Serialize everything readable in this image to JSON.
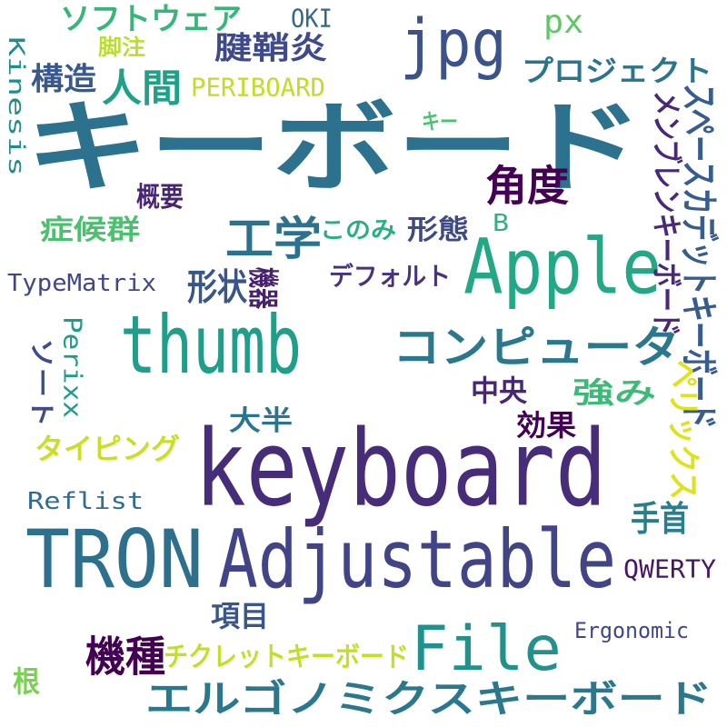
{
  "words": [
    {
      "text": "キーボード",
      "color": "#2c718e"
    },
    {
      "text": "keyboard",
      "color": "#472c7a"
    },
    {
      "text": "Apple",
      "color": "#22a884"
    },
    {
      "text": "thumb",
      "color": "#1f9e89"
    },
    {
      "text": "TRON",
      "color": "#2d708e"
    },
    {
      "text": "Adjustable",
      "color": "#414487"
    },
    {
      "text": "File",
      "color": "#21918c"
    },
    {
      "text": "jpg",
      "color": "#3b528b"
    },
    {
      "text": "エルゴノミクスキーボード",
      "color": "#2a788e"
    },
    {
      "text": "コンピュータ",
      "color": "#2a788e"
    },
    {
      "text": "スペースカデットキーボード",
      "color": "#365d8d"
    },
    {
      "text": "メンブレンキーボード",
      "color": "#482878"
    },
    {
      "text": "ソフトウェア",
      "color": "#35b779"
    },
    {
      "text": "人間",
      "color": "#1fa187"
    },
    {
      "text": "工学",
      "color": "#2c728e"
    },
    {
      "text": "角度",
      "color": "#440154"
    },
    {
      "text": "手首",
      "color": "#277f8e"
    },
    {
      "text": "機種",
      "color": "#440154"
    },
    {
      "text": "プロジェクト",
      "color": "#2b748e"
    },
    {
      "text": "腱鞘炎",
      "color": "#3e4a89"
    },
    {
      "text": "構造",
      "color": "#38598c"
    },
    {
      "text": "PERIBOARD",
      "color": "#bddf26"
    },
    {
      "text": "脚注",
      "color": "#b8de29"
    },
    {
      "text": "OKI",
      "color": "#31688e"
    },
    {
      "text": "px",
      "color": "#5ec962"
    },
    {
      "text": "Kinesis",
      "color": "#228d8d"
    },
    {
      "text": "キー",
      "color": "#4ac16d"
    },
    {
      "text": "概要",
      "color": "#482475"
    },
    {
      "text": "症候群",
      "color": "#4ac16d"
    },
    {
      "text": "このみ",
      "color": "#29af7f"
    },
    {
      "text": "形態",
      "color": "#3e4989"
    },
    {
      "text": "B",
      "color": "#2db27d"
    },
    {
      "text": "TypeMatrix",
      "color": "#3f4788"
    },
    {
      "text": "形状",
      "color": "#39568c"
    },
    {
      "text": "機器",
      "color": "#482071"
    },
    {
      "text": "デフォルト",
      "color": "#46327e"
    },
    {
      "text": "ソート",
      "color": "#3e4c8a"
    },
    {
      "text": "Perixx",
      "color": "#1e9c89"
    },
    {
      "text": "中央",
      "color": "#482677"
    },
    {
      "text": "強み",
      "color": "#3bbb75"
    },
    {
      "text": "ペリックス",
      "color": "#dde318"
    },
    {
      "text": "大半",
      "color": "#2b758e"
    },
    {
      "text": "効果",
      "color": "#440154"
    },
    {
      "text": "タイピング",
      "color": "#c8e020"
    },
    {
      "text": "Reflist",
      "color": "#2f6c8e"
    },
    {
      "text": "QWERTY",
      "color": "#481668"
    },
    {
      "text": "項目",
      "color": "#39558c"
    },
    {
      "text": "Ergonomic",
      "color": "#3f4788"
    },
    {
      "text": "チクレットキーボード",
      "color": "#c2df23"
    },
    {
      "text": "根",
      "color": "#7ad151"
    }
  ]
}
